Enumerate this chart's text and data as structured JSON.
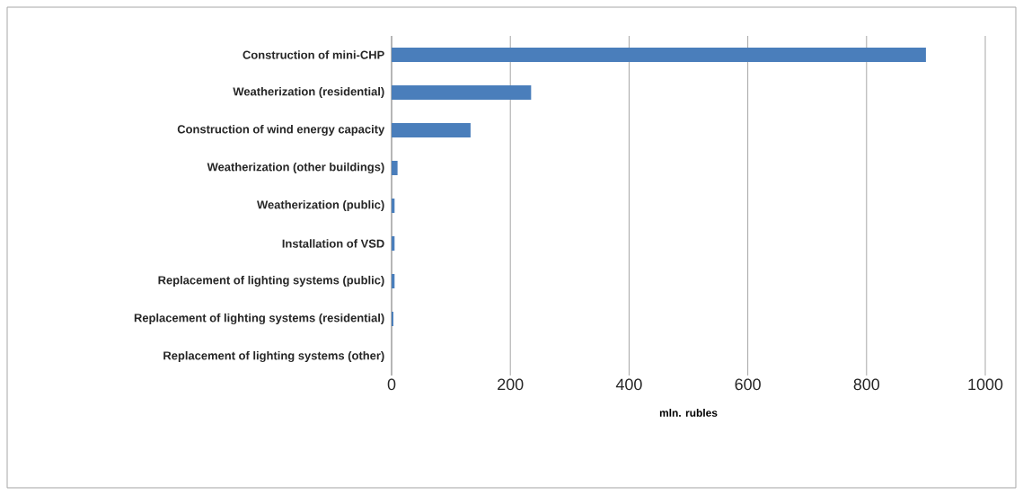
{
  "chart_data": {
    "type": "bar",
    "orientation": "horizontal",
    "xlabel": "mln. rubles",
    "categories": [
      "Construction of mini-CHP",
      "Weatherization (residential)",
      "Construction of wind energy capacity",
      "Weatherization (other buildings)",
      "Weatherization (public)",
      "Installation of VSD",
      "Replacement of lighting systems (public)",
      "Replacement of lighting systems (residential)",
      "Replacement of lighting systems (other)"
    ],
    "values": [
      900,
      235,
      133,
      10,
      5,
      5,
      5,
      3,
      0
    ],
    "color": "#4a7ebb",
    "xlim": [
      0,
      1000
    ],
    "xticks": [
      0,
      200,
      400,
      600,
      800,
      1000
    ],
    "grid": "x"
  }
}
